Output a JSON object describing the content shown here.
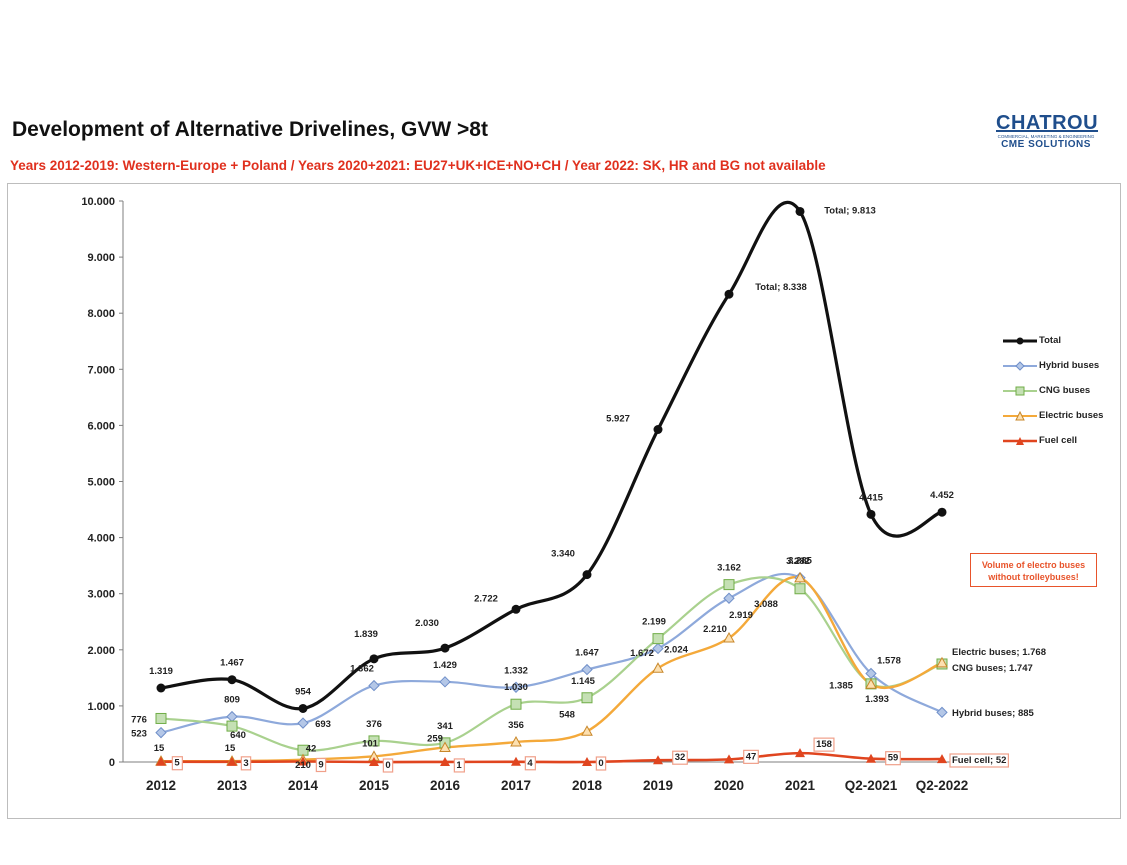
{
  "header": {
    "title": "Development of Alternative Drivelines, GVW >8t",
    "subtitle": "Years 2012-2019: Western-Europe + Poland / Years 2020+2021: EU27+UK+ICE+NO+CH / Year 2022: SK, HR and BG not available"
  },
  "logo": {
    "name": "CHATROU",
    "tagline": "COMMERCIAL, MARKETING & ENGINEERING",
    "sub": "CME SOLUTIONS"
  },
  "note": "Volume of electro buses without trolleybuses!",
  "colors": {
    "total": "#111111",
    "hybrid": "#8ea9db",
    "cng": "#a9d18e",
    "electric": "#f4a93a",
    "fuel": "#e0451f",
    "accent_red": "#e0301e"
  },
  "chart_data": {
    "type": "line",
    "title": "Development of Alternative Drivelines, GVW >8t",
    "xlabel": "",
    "ylabel": "",
    "ylim": [
      0,
      10000
    ],
    "yticks": [
      "0",
      "1.000",
      "2.000",
      "3.000",
      "4.000",
      "5.000",
      "6.000",
      "7.000",
      "8.000",
      "9.000",
      "10.000"
    ],
    "categories": [
      "2012",
      "2013",
      "2014",
      "2015",
      "2016",
      "2017",
      "2018",
      "2019",
      "2020",
      "2021",
      "Q2-2021",
      "Q2-2022"
    ],
    "legend_position": "right",
    "series": [
      {
        "name": "Total",
        "key": "total",
        "marker": "circle",
        "values": [
          1319,
          1467,
          954,
          1839,
          2030,
          2722,
          3340,
          5927,
          8338,
          9813,
          4415,
          4452
        ],
        "labels": [
          "1.319",
          "1.467",
          "954",
          "1.839",
          "2.030",
          "2.722",
          "3.340",
          "5.927",
          "Total; 8.338",
          "Total; 9.813",
          "4.415",
          "4.452"
        ]
      },
      {
        "name": "Hybrid buses",
        "key": "hybrid",
        "marker": "diamond",
        "values": [
          523,
          809,
          693,
          1362,
          1429,
          1332,
          1647,
          2024,
          2919,
          3285,
          1578,
          885
        ],
        "labels": [
          "523",
          "809",
          "693",
          "1.362",
          "1.429",
          "1.332",
          "1.647",
          "2.024",
          "2.919",
          "3.285",
          "1.578",
          "Hybrid buses; 885"
        ]
      },
      {
        "name": "CNG buses",
        "key": "cng",
        "marker": "square",
        "values": [
          776,
          640,
          210,
          376,
          341,
          1030,
          1145,
          2199,
          3162,
          3088,
          1393,
          1747
        ],
        "labels": [
          "776",
          "640",
          "210",
          "376",
          "341",
          "1.030",
          "1.145",
          "2.199",
          "3.162",
          "3.088",
          "1.393",
          "CNG buses; 1.747"
        ]
      },
      {
        "name": "Electric buses",
        "key": "electric",
        "marker": "triangle",
        "values": [
          15,
          15,
          42,
          101,
          259,
          356,
          548,
          1672,
          2210,
          3282,
          1385,
          1768
        ],
        "labels": [
          "15",
          "15",
          "42",
          "101",
          "259",
          "356",
          "548",
          "1.672",
          "2.210",
          "3.282",
          "1.385",
          "Electric buses; 1.768"
        ]
      },
      {
        "name": "Fuel cell",
        "key": "fuel",
        "marker": "triangle",
        "values": [
          5,
          3,
          9,
          0,
          1,
          4,
          0,
          32,
          47,
          158,
          59,
          52
        ],
        "labels": [
          "5",
          "3",
          "9",
          "0",
          "1",
          "4",
          "0",
          "32",
          "47",
          "158",
          "59",
          "Fuel cell; 52"
        ]
      }
    ]
  }
}
